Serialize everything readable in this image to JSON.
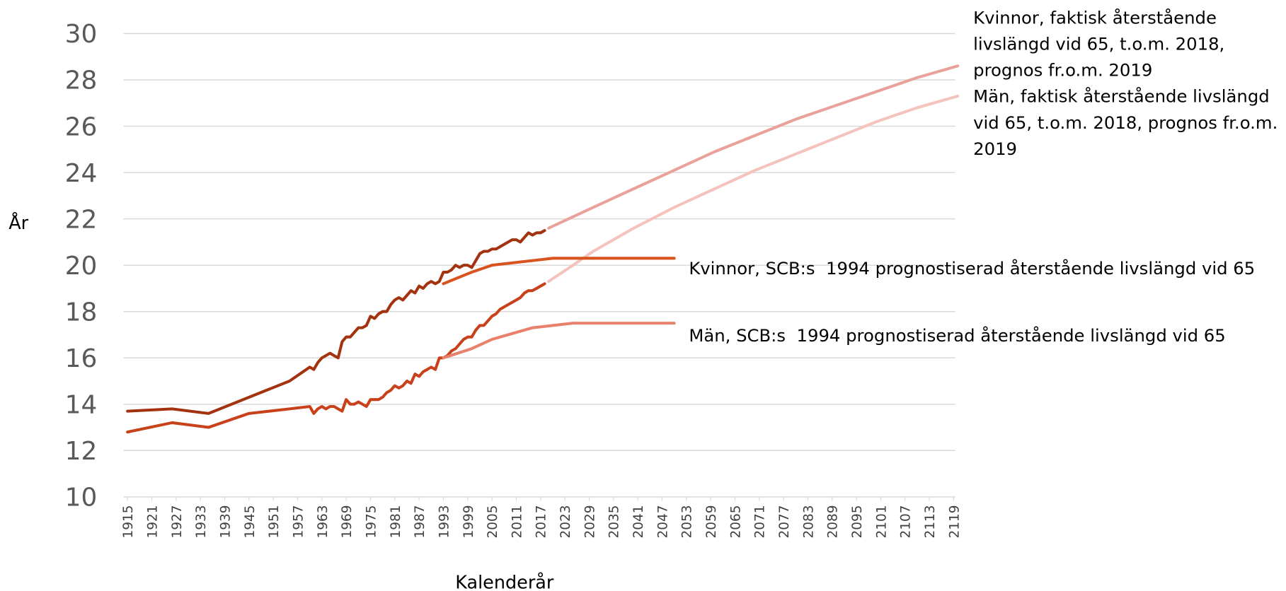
{
  "chart_data": {
    "type": "line",
    "y_label": "År",
    "x_label": "Kalenderår",
    "xlim": [
      1915,
      2120
    ],
    "ylim": [
      10,
      30
    ],
    "yticks": [
      10,
      12,
      14,
      16,
      18,
      20,
      22,
      24,
      26,
      28,
      30
    ],
    "xticks": [
      1915,
      1921,
      1927,
      1933,
      1939,
      1945,
      1951,
      1957,
      1963,
      1969,
      1975,
      1981,
      1987,
      1993,
      1999,
      2005,
      2011,
      2017,
      2023,
      2029,
      2035,
      2041,
      2047,
      2053,
      2059,
      2065,
      2071,
      2077,
      2083,
      2089,
      2095,
      2101,
      2107,
      2113,
      2119
    ],
    "grid": true,
    "series": [
      {
        "name": "Kvinnor, faktisk återstående livslängd vid 65, t.o.m. 2018, prognos fr.o.m. 2019",
        "color": "#a3320f",
        "forecast_color": "#e9a19a",
        "forecast_from": 2019,
        "x": [
          1915,
          1926,
          1935,
          1955,
          1960,
          1961,
          1962,
          1963,
          1964,
          1965,
          1966,
          1967,
          1968,
          1969,
          1970,
          1971,
          1972,
          1973,
          1974,
          1975,
          1976,
          1977,
          1978,
          1979,
          1980,
          1981,
          1982,
          1983,
          1984,
          1985,
          1986,
          1987,
          1988,
          1989,
          1990,
          1991,
          1992,
          1993,
          1994,
          1995,
          1996,
          1997,
          1998,
          1999,
          2000,
          2001,
          2002,
          2003,
          2004,
          2005,
          2006,
          2007,
          2008,
          2009,
          2010,
          2011,
          2012,
          2013,
          2014,
          2015,
          2016,
          2017,
          2018,
          2019,
          2030,
          2040,
          2050,
          2060,
          2070,
          2080,
          2090,
          2100,
          2110,
          2120
        ],
        "values": [
          13.7,
          13.8,
          13.6,
          15.0,
          15.6,
          15.5,
          15.8,
          16.0,
          16.1,
          16.2,
          16.1,
          16.0,
          16.7,
          16.9,
          16.9,
          17.1,
          17.3,
          17.3,
          17.4,
          17.8,
          17.7,
          17.9,
          18.0,
          18.0,
          18.3,
          18.5,
          18.6,
          18.5,
          18.7,
          18.9,
          18.8,
          19.1,
          19.0,
          19.2,
          19.3,
          19.2,
          19.3,
          19.7,
          19.7,
          19.8,
          20.0,
          19.9,
          20.0,
          20.0,
          19.9,
          20.2,
          20.5,
          20.6,
          20.6,
          20.7,
          20.7,
          20.8,
          20.9,
          21.0,
          21.1,
          21.1,
          21.0,
          21.2,
          21.4,
          21.3,
          21.4,
          21.4,
          21.5,
          21.6,
          22.5,
          23.3,
          24.1,
          24.9,
          25.6,
          26.3,
          26.9,
          27.5,
          28.1,
          28.6
        ]
      },
      {
        "name": "Män, faktisk återstående livslängd vid 65, t.o.m. 2018, prognos fr.o.m. 2019",
        "color": "#c9411a",
        "forecast_color": "#f4c3bd",
        "forecast_from": 2019,
        "x": [
          1915,
          1926,
          1935,
          1945,
          1955,
          1960,
          1961,
          1962,
          1963,
          1964,
          1965,
          1966,
          1967,
          1968,
          1969,
          1970,
          1971,
          1972,
          1973,
          1974,
          1975,
          1976,
          1977,
          1978,
          1979,
          1980,
          1981,
          1982,
          1983,
          1984,
          1985,
          1986,
          1987,
          1988,
          1989,
          1990,
          1991,
          1992,
          1993,
          1994,
          1995,
          1996,
          1997,
          1998,
          1999,
          2000,
          2001,
          2002,
          2003,
          2004,
          2005,
          2006,
          2007,
          2008,
          2009,
          2010,
          2011,
          2012,
          2013,
          2014,
          2015,
          2016,
          2017,
          2018,
          2019,
          2025,
          2030,
          2040,
          2050,
          2060,
          2070,
          2080,
          2090,
          2100,
          2110,
          2120
        ],
        "values": [
          12.8,
          13.2,
          13.0,
          13.6,
          13.8,
          13.9,
          13.6,
          13.8,
          13.9,
          13.8,
          13.9,
          13.9,
          13.8,
          13.7,
          14.2,
          14.0,
          14.0,
          14.1,
          14.0,
          13.9,
          14.2,
          14.2,
          14.2,
          14.3,
          14.5,
          14.6,
          14.8,
          14.7,
          14.8,
          15.0,
          14.9,
          15.3,
          15.2,
          15.4,
          15.5,
          15.6,
          15.5,
          16.0,
          16.0,
          16.1,
          16.3,
          16.4,
          16.6,
          16.8,
          16.9,
          16.9,
          17.2,
          17.4,
          17.4,
          17.6,
          17.8,
          17.9,
          18.1,
          18.2,
          18.3,
          18.4,
          18.5,
          18.6,
          18.8,
          18.9,
          18.9,
          19.0,
          19.1,
          19.2,
          19.3,
          20.0,
          20.6,
          21.6,
          22.5,
          23.3,
          24.1,
          24.8,
          25.5,
          26.2,
          26.8,
          27.3
        ]
      },
      {
        "name": "Kvinnor, SCB:s  1994 prognostiserad återstående livslängd vid 65",
        "color": "#d9531f",
        "x": [
          1993,
          2000,
          2005,
          2020,
          2050
        ],
        "values": [
          19.2,
          19.7,
          20.0,
          20.3,
          20.3
        ]
      },
      {
        "name": "Män, SCB:s  1994 prognostiserad återstående livslängd vid 65",
        "color": "#e8806c",
        "x": [
          1993,
          2000,
          2005,
          2015,
          2025,
          2050
        ],
        "values": [
          16.0,
          16.4,
          16.8,
          17.3,
          17.5,
          17.5
        ]
      }
    ]
  }
}
